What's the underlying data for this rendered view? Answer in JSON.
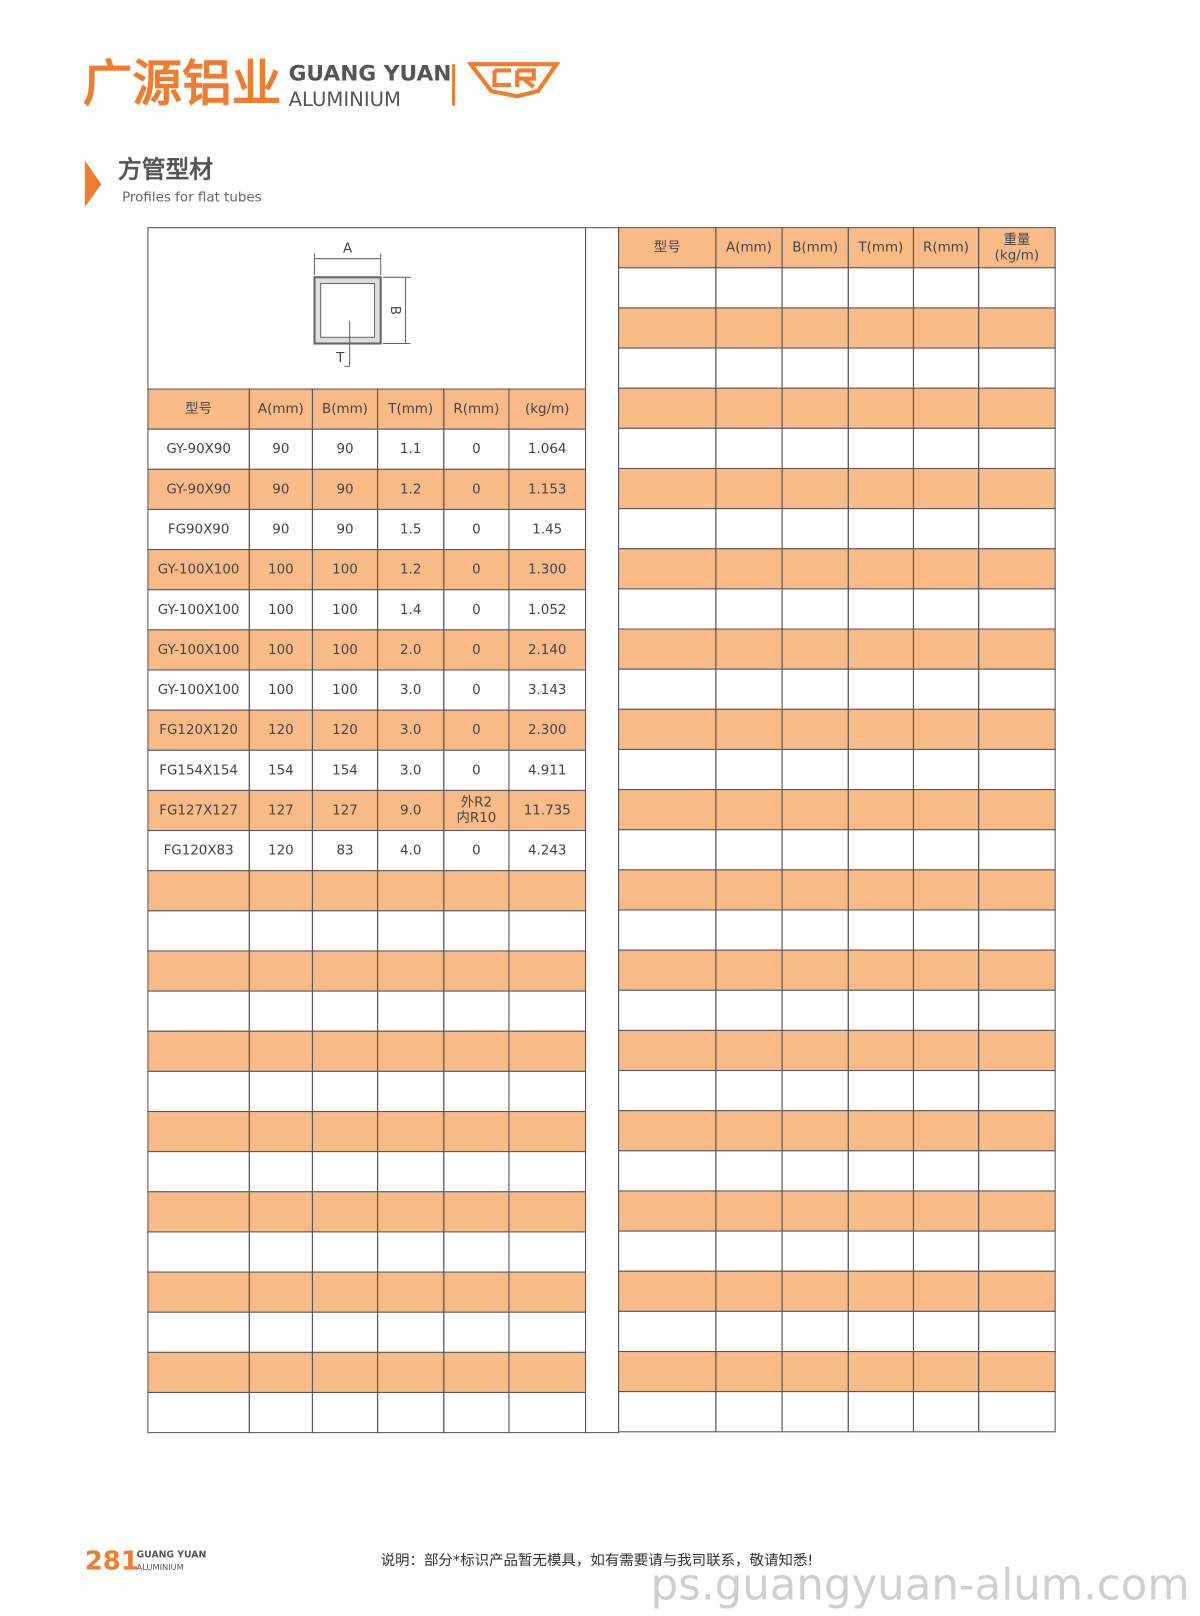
{
  "header": {
    "brand_cn": "广源铝业",
    "brand_en_1": "GUANG YUAN",
    "brand_en_2": "ALUMINIUM"
  },
  "section": {
    "title": "方管型材",
    "subtitle": "Profiles for flat tubes"
  },
  "diagram": {
    "label_a": "A",
    "label_b": "B",
    "label_t": "T"
  },
  "left_table": {
    "headers": [
      "型号",
      "A(mm)",
      "B(mm)",
      "T(mm)",
      "R(mm)",
      "(kg/m)"
    ],
    "rows": [
      [
        "GY-90X90",
        "90",
        "90",
        "1.1",
        "0",
        "1.064"
      ],
      [
        "GY-90X90",
        "90",
        "90",
        "1.2",
        "0",
        "1.153"
      ],
      [
        "FG90X90",
        "90",
        "90",
        "1.5",
        "0",
        "1.45"
      ],
      [
        "GY-100X100",
        "100",
        "100",
        "1.2",
        "0",
        "1.300"
      ],
      [
        "GY-100X100",
        "100",
        "100",
        "1.4",
        "0",
        "1.052"
      ],
      [
        "GY-100X100",
        "100",
        "100",
        "2.0",
        "0",
        "2.140"
      ],
      [
        "GY-100X100",
        "100",
        "100",
        "3.0",
        "0",
        "3.143"
      ],
      [
        "FG120X120",
        "120",
        "120",
        "3.0",
        "0",
        "2.300"
      ],
      [
        "FG154X154",
        "154",
        "154",
        "3.0",
        "0",
        "4.911"
      ],
      [
        "FG127X127",
        "127",
        "127",
        "9.0",
        [
          "外R2",
          "内R10"
        ],
        "11.735"
      ],
      [
        "FG120X83",
        "120",
        "83",
        "4.0",
        "0",
        "4.243"
      ]
    ]
  },
  "right_table": {
    "headers": [
      "型号",
      "A(mm)",
      "B(mm)",
      "T(mm)",
      "R(mm)",
      [
        "重量",
        "(kg/m)"
      ]
    ]
  },
  "footer": {
    "page_number": "281",
    "brand_en_1": "GUANG YUAN",
    "brand_en_2": "ALUMINIUM",
    "note": "说明：部分*标识产品暂无模具，如有需要请与我司联系，敬请知悉!",
    "watermark": "ps.guangyuan-alum.com"
  }
}
